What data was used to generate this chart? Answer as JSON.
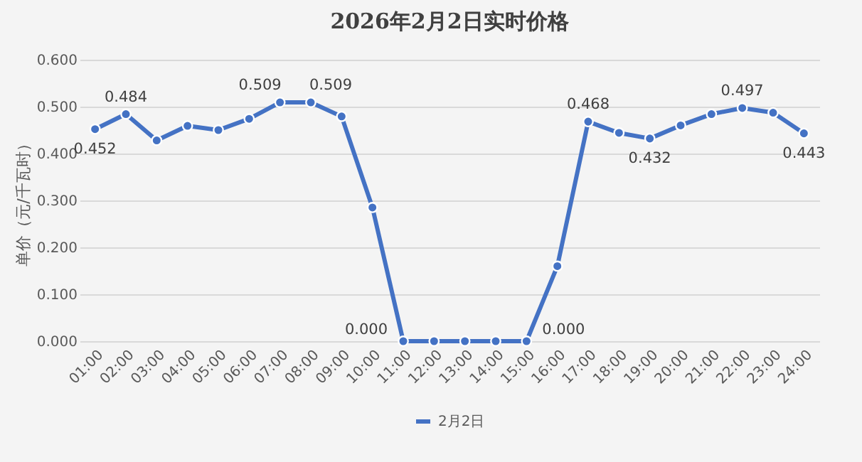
{
  "chart_data": {
    "type": "line",
    "title": "2026年2月2日实时价格",
    "ylabel": "单价（元/千瓦时）",
    "categories": [
      "01:00",
      "02:00",
      "03:00",
      "04:00",
      "05:00",
      "06:00",
      "07:00",
      "08:00",
      "09:00",
      "10:00",
      "11:00",
      "12:00",
      "13:00",
      "14:00",
      "15:00",
      "16:00",
      "17:00",
      "18:00",
      "19:00",
      "20:00",
      "21:00",
      "22:00",
      "23:00",
      "24:00"
    ],
    "series": [
      {
        "name": "2月2日",
        "color": "#4472c4",
        "values": [
          0.452,
          0.484,
          0.428,
          0.459,
          0.45,
          0.474,
          0.509,
          0.509,
          0.479,
          0.285,
          0,
          0,
          0,
          0,
          0,
          0.16,
          0.468,
          0.444,
          0.432,
          0.46,
          0.484,
          0.497,
          0.487,
          0.443
        ],
        "value_labels": [
          "0.452",
          "0.484",
          null,
          null,
          null,
          null,
          "0.509",
          "0.509",
          null,
          null,
          "0.000",
          null,
          null,
          null,
          "0.000",
          null,
          "0.468",
          null,
          "0.432",
          null,
          null,
          "0.497",
          null,
          "0.443"
        ]
      }
    ],
    "ylim": [
      0,
      0.6
    ],
    "yticks": [
      {
        "value": 0,
        "label": "0.000"
      },
      {
        "value": 0.1,
        "label": "0.100"
      },
      {
        "value": 0.2,
        "label": "0.200"
      },
      {
        "value": 0.3,
        "label": "0.300"
      },
      {
        "value": 0.4,
        "label": "0.400"
      },
      {
        "value": 0.5,
        "label": "0.500"
      },
      {
        "value": 0.6,
        "label": "0.600"
      }
    ],
    "grid": "y",
    "legend": "bottom",
    "marker": "circle",
    "line_style": "solid"
  }
}
